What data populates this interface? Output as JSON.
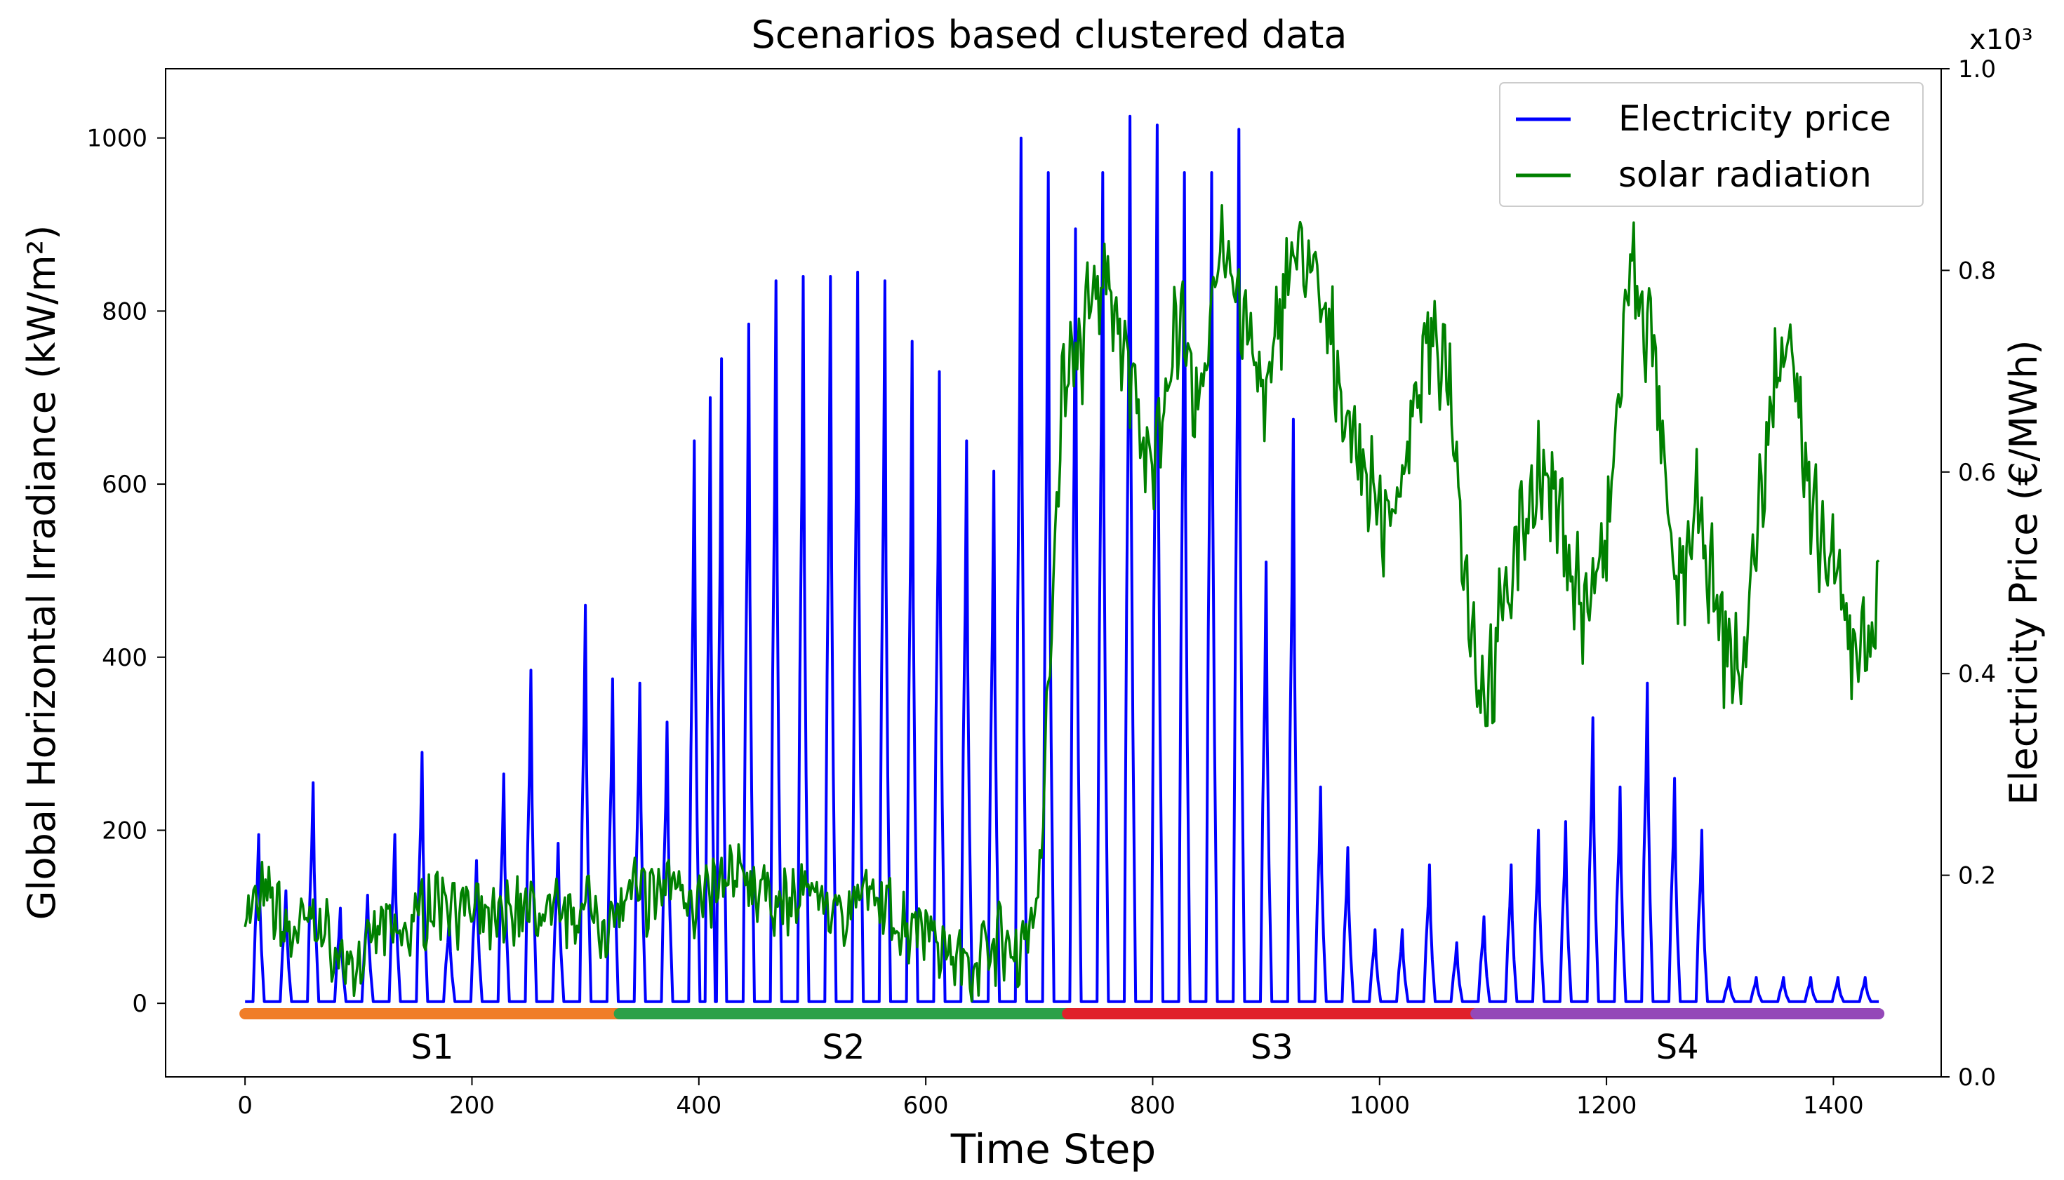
{
  "chart_data": {
    "type": "line",
    "title": "Scenarios based clustered data",
    "xlabel": "Time Step",
    "ylabel_left": "Global Horizontal Irradiance (kW/m²)",
    "ylabel_right": "Electricity Price (€/MWh)",
    "right_axis_multiplier": "x10³",
    "xlim": [
      -70,
      1495
    ],
    "ylim_left": [
      -85,
      1080
    ],
    "ylim_right": [
      0.0,
      1.0
    ],
    "x_ticks": [
      0,
      200,
      400,
      600,
      800,
      1000,
      1200,
      1400
    ],
    "y_left_ticks": [
      0,
      200,
      400,
      600,
      800,
      1000
    ],
    "y_right_ticks": [
      "0.0",
      "0.2",
      "0.4",
      "0.6",
      "0.8",
      "1.0"
    ],
    "grid": false,
    "legend_position": "top-right",
    "colors": {
      "Electricity price": "#0000ff",
      "solar radiation": "#008000",
      "S1": "#f07d28",
      "S2": "#2ca048",
      "S3": "#e0202a",
      "S4": "#9448b8"
    },
    "series": [
      {
        "name": "Electricity price",
        "axis": "left",
        "style": "daily-peaks",
        "baseline": 2,
        "peak_x": [
          12,
          36,
          60,
          84,
          108,
          132,
          156,
          180,
          204,
          228,
          252,
          276,
          300,
          324,
          348,
          372,
          396,
          410,
          420,
          444,
          468,
          492,
          516,
          540,
          564,
          588,
          612,
          636,
          660,
          684,
          708,
          732,
          756,
          780,
          804,
          828,
          852,
          876,
          900,
          924,
          948,
          972,
          996,
          1020,
          1044,
          1068,
          1092,
          1116,
          1140,
          1164,
          1188,
          1212,
          1236,
          1260,
          1284,
          1308,
          1332,
          1356,
          1380,
          1404,
          1428
        ],
        "peak_y": [
          195,
          130,
          255,
          110,
          125,
          195,
          290,
          100,
          165,
          265,
          385,
          185,
          460,
          375,
          370,
          325,
          650,
          700,
          745,
          785,
          835,
          840,
          840,
          845,
          835,
          765,
          730,
          650,
          615,
          1000,
          960,
          895,
          960,
          1025,
          1015,
          960,
          960,
          1010,
          510,
          675,
          250,
          180,
          85,
          85,
          160,
          70,
          100,
          160,
          200,
          210,
          330,
          250,
          370,
          260,
          200,
          30,
          30,
          30,
          30,
          30,
          30
        ]
      },
      {
        "name": "solar radiation",
        "axis": "right",
        "style": "noisy",
        "x": [
          0,
          20,
          40,
          60,
          80,
          100,
          120,
          140,
          160,
          180,
          200,
          220,
          240,
          260,
          280,
          300,
          320,
          340,
          360,
          380,
          400,
          420,
          440,
          460,
          480,
          500,
          520,
          540,
          560,
          580,
          600,
          620,
          640,
          660,
          680,
          700,
          720,
          740,
          760,
          780,
          800,
          820,
          840,
          860,
          880,
          900,
          920,
          940,
          960,
          980,
          1000,
          1020,
          1040,
          1060,
          1080,
          1090,
          1100,
          1120,
          1140,
          1160,
          1180,
          1200,
          1220,
          1240,
          1260,
          1280,
          1300,
          1310,
          1320,
          1340,
          1360,
          1380,
          1400,
          1420,
          1440
        ],
        "y": [
          0.16,
          0.18,
          0.14,
          0.16,
          0.12,
          0.11,
          0.15,
          0.14,
          0.17,
          0.18,
          0.16,
          0.15,
          0.17,
          0.16,
          0.16,
          0.17,
          0.15,
          0.18,
          0.18,
          0.2,
          0.17,
          0.19,
          0.2,
          0.18,
          0.17,
          0.19,
          0.16,
          0.18,
          0.17,
          0.15,
          0.16,
          0.12,
          0.11,
          0.14,
          0.12,
          0.18,
          0.68,
          0.74,
          0.8,
          0.7,
          0.58,
          0.76,
          0.65,
          0.84,
          0.75,
          0.66,
          0.82,
          0.8,
          0.71,
          0.62,
          0.56,
          0.58,
          0.72,
          0.72,
          0.45,
          0.38,
          0.4,
          0.53,
          0.6,
          0.55,
          0.46,
          0.52,
          0.8,
          0.73,
          0.48,
          0.56,
          0.44,
          0.42,
          0.4,
          0.62,
          0.76,
          0.55,
          0.5,
          0.42,
          0.46
        ]
      },
      {
        "name": "scenario segments",
        "axis": "left",
        "style": "bands",
        "y": -12,
        "segments": [
          {
            "label": "S1",
            "x0": 0,
            "x1": 330
          },
          {
            "label": "S2",
            "x0": 330,
            "x1": 725
          },
          {
            "label": "S3",
            "x0": 725,
            "x1": 1085
          },
          {
            "label": "S4",
            "x0": 1085,
            "x1": 1440
          }
        ]
      }
    ],
    "legend": [
      "Electricity price",
      "solar radiation"
    ]
  }
}
